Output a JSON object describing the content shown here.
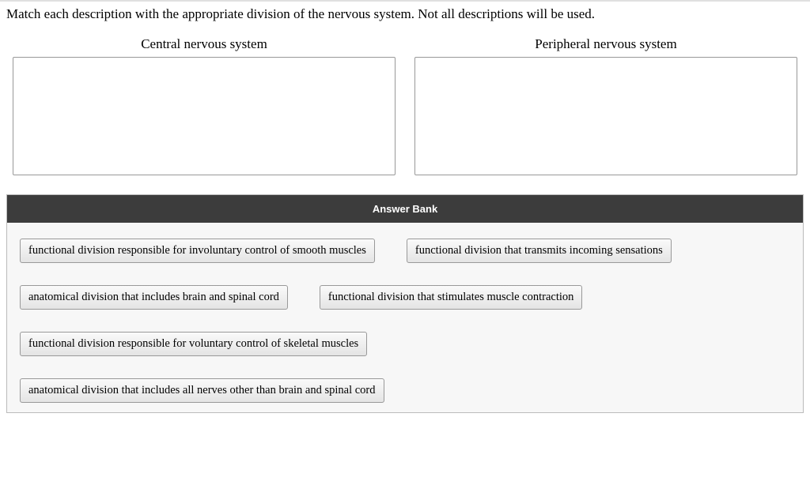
{
  "question_text": "Match each description with the appropriate division of the nervous system. Not all descriptions will be used.",
  "drop_zones": {
    "left_title": "Central nervous system",
    "right_title": "Peripheral nervous system"
  },
  "answer_bank": {
    "header": "Answer Bank",
    "rows": [
      [
        "functional division responsible for involuntary control of smooth muscles",
        "functional division that transmits incoming sensations"
      ],
      [
        "anatomical division that includes brain and spinal cord",
        "functional division that stimulates muscle contraction"
      ],
      [
        "functional division responsible for voluntary control of skeletal muscles"
      ],
      [
        "anatomical division that includes all nerves other than brain and spinal cord"
      ]
    ]
  },
  "colors": {
    "bank_header_bg": "#3c3c3c",
    "bank_body_bg": "#f7f7f7",
    "item_border": "#999999",
    "drop_border": "#999999"
  }
}
